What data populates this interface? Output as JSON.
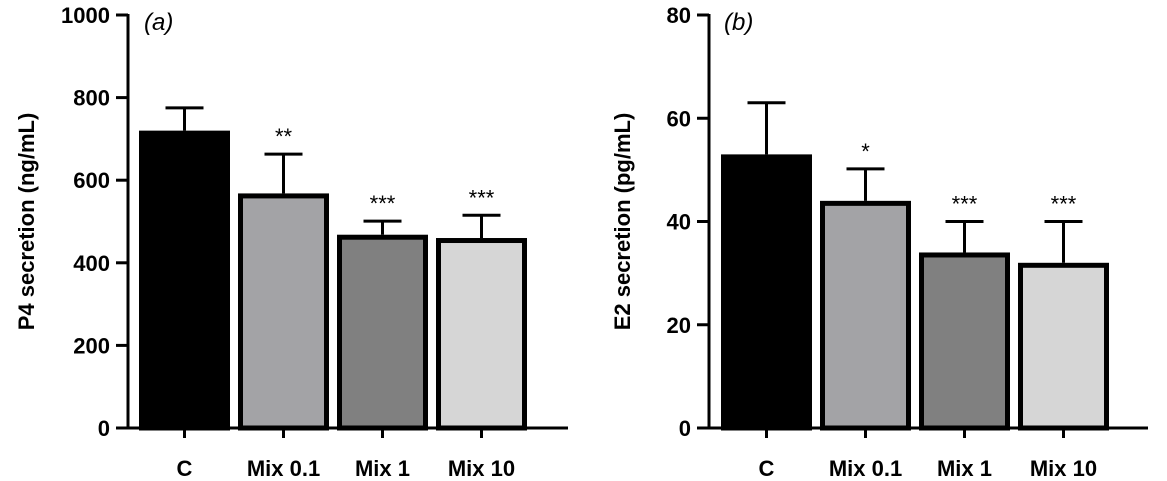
{
  "chart_data": [
    {
      "type": "bar",
      "panel_label": "(a)",
      "ylabel": "P4 secretion (ng/mL)",
      "ylim": [
        0,
        1000
      ],
      "yticks": [
        0,
        200,
        400,
        600,
        800,
        1000
      ],
      "categories": [
        "C",
        "Mix 0.1",
        "Mix 1",
        "Mix 10"
      ],
      "values": [
        720,
        568,
        468,
        460
      ],
      "errors": [
        55,
        95,
        33,
        55
      ],
      "significance": [
        "",
        "**",
        "***",
        "***"
      ],
      "colors": [
        "#000000",
        "#a3a3a6",
        "#808080",
        "#d6d6d6"
      ]
    },
    {
      "type": "bar",
      "panel_label": "(b)",
      "ylabel": "E2 secretion (pg/mL)",
      "ylim": [
        0,
        80
      ],
      "yticks": [
        0,
        20,
        40,
        60,
        80
      ],
      "categories": [
        "C",
        "Mix 0.1",
        "Mix 1",
        "Mix 10"
      ],
      "values": [
        53,
        44,
        34,
        32
      ],
      "errors": [
        10,
        6.2,
        6,
        8
      ],
      "significance": [
        "",
        "*",
        "***",
        "***"
      ],
      "colors": [
        "#000000",
        "#a3a3a6",
        "#808080",
        "#d6d6d6"
      ]
    }
  ]
}
